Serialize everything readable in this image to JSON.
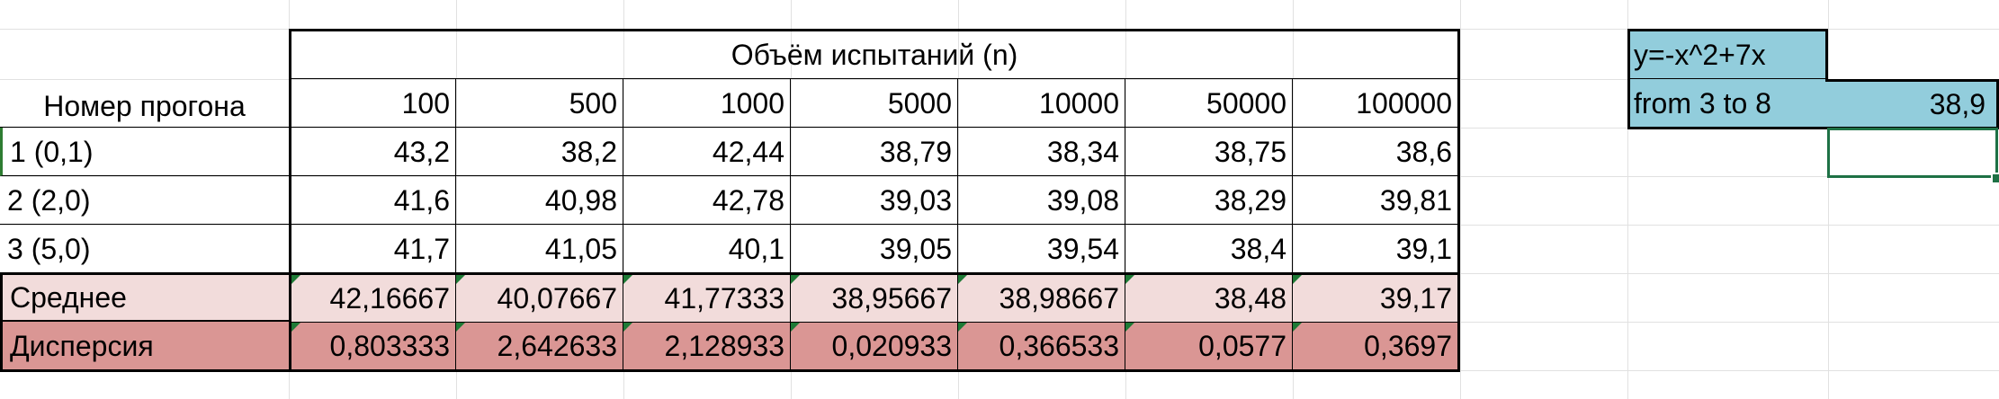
{
  "table": {
    "header_group": "Объём испытаний (n)",
    "row_header": "Номер прогона",
    "columns": [
      "100",
      "500",
      "1000",
      "5000",
      "10000",
      "50000",
      "100000"
    ],
    "rows": [
      {
        "label": "1 (0,1)",
        "values": [
          "43,2",
          "38,2",
          "42,44",
          "38,79",
          "38,34",
          "38,75",
          "38,6"
        ]
      },
      {
        "label": "2 (2,0)",
        "values": [
          "41,6",
          "40,98",
          "42,78",
          "39,03",
          "39,08",
          "38,29",
          "39,81"
        ]
      },
      {
        "label": "3 (5,0)",
        "values": [
          "41,7",
          "41,05",
          "40,1",
          "39,05",
          "39,54",
          "38,4",
          "39,1"
        ]
      }
    ],
    "mean": {
      "label": "Среднее",
      "values": [
        "42,16667",
        "40,07667",
        "41,77333",
        "38,95667",
        "38,98667",
        "38,48",
        "39,17"
      ]
    },
    "variance": {
      "label": "Дисперсия",
      "values": [
        "0,803333",
        "2,642633",
        "2,128933",
        "0,020933",
        "0,366533",
        "0,0577",
        "0,3697"
      ]
    }
  },
  "side_box": {
    "formula": "y=-x^2+7x",
    "range": "from 3 to 8",
    "result": "38,9"
  },
  "colors": {
    "mean_fill": "#f2dcdb",
    "variance_fill": "#da9694",
    "side_fill": "#92cddc",
    "selection": "#1e7145",
    "error_marker": "#1e7a36"
  }
}
